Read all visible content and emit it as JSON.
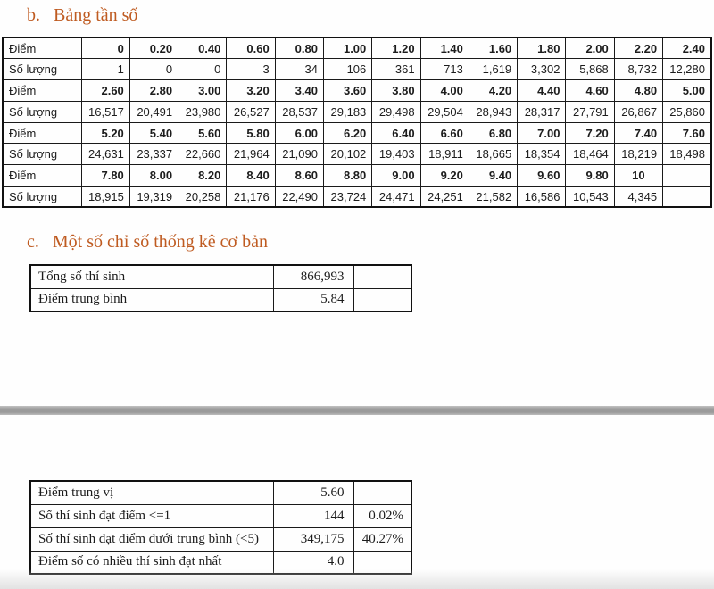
{
  "page": {
    "section_b": {
      "prefix": "b.",
      "title": "Bảng tần số"
    },
    "section_c": {
      "prefix": "c.",
      "title": "Một số chỉ số thống kê cơ bản"
    }
  },
  "frequency_table": {
    "score_label": "Điểm",
    "count_label": "Số lượng",
    "bands": [
      {
        "scores": [
          "0",
          "0.20",
          "0.40",
          "0.60",
          "0.80",
          "1.00",
          "1.20",
          "1.40",
          "1.60",
          "1.80",
          "2.00",
          "2.20",
          "2.40"
        ],
        "counts": [
          "1",
          "0",
          "0",
          "3",
          "34",
          "106",
          "361",
          "713",
          "1,619",
          "3,302",
          "5,868",
          "8,732",
          "12,280"
        ]
      },
      {
        "scores": [
          "2.60",
          "2.80",
          "3.00",
          "3.20",
          "3.40",
          "3.60",
          "3.80",
          "4.00",
          "4.20",
          "4.40",
          "4.60",
          "4.80",
          "5.00"
        ],
        "counts": [
          "16,517",
          "20,491",
          "23,980",
          "26,527",
          "28,537",
          "29,183",
          "29,498",
          "29,504",
          "28,943",
          "28,317",
          "27,791",
          "26,867",
          "25,860"
        ]
      },
      {
        "scores": [
          "5.20",
          "5.40",
          "5.60",
          "5.80",
          "6.00",
          "6.20",
          "6.40",
          "6.60",
          "6.80",
          "7.00",
          "7.20",
          "7.40",
          "7.60"
        ],
        "counts": [
          "24,631",
          "23,337",
          "22,660",
          "21,964",
          "21,090",
          "20,102",
          "19,403",
          "18,911",
          "18,665",
          "18,354",
          "18,464",
          "18,219",
          "18,498"
        ]
      },
      {
        "scores": [
          "7.80",
          "8.00",
          "8.20",
          "8.40",
          "8.60",
          "8.80",
          "9.00",
          "9.20",
          "9.40",
          "9.60",
          "9.80",
          "10",
          ""
        ],
        "counts": [
          "18,915",
          "19,319",
          "20,258",
          "21,176",
          "22,490",
          "23,724",
          "24,471",
          "24,251",
          "21,582",
          "16,586",
          "10,543",
          "4,345",
          ""
        ]
      }
    ]
  },
  "summary_top": {
    "rows": [
      {
        "label": "Tổng số thí sinh",
        "value": "866,993",
        "pct": ""
      },
      {
        "label": "Điểm trung bình",
        "value": "5.84",
        "pct": ""
      }
    ]
  },
  "summary_bottom": {
    "rows": [
      {
        "label": "Điểm trung vị",
        "value": "5.60",
        "pct": ""
      },
      {
        "label": "Số thí sinh đạt điểm <=1",
        "value": "144",
        "pct": "0.02%"
      },
      {
        "label": "Số thí sinh đạt điểm dưới trung bình (<5)",
        "value": "349,175",
        "pct": "40.27%"
      },
      {
        "label": "Điểm số có nhiều thí sinh đạt nhất",
        "value": "4.0",
        "pct": ""
      }
    ]
  },
  "colors": {
    "heading_accent": "#bf5b21",
    "table_border": "#1a1a1a",
    "page_break_gray": "#9b9b9b"
  }
}
